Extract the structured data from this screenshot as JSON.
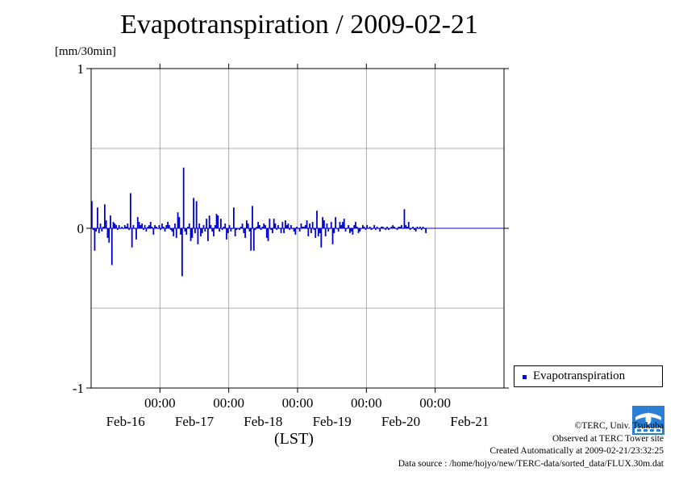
{
  "title": "Evapotranspiration / 2009-02-21",
  "unit_label": "[mm/30min]",
  "legend": {
    "label": "Evapotranspiration"
  },
  "colors": {
    "series": "#0000cc",
    "grid": "#999999",
    "axis": "#000000"
  },
  "credits": {
    "line1": "©TERC, Univ. Tsukuba",
    "line2": "Observed at TERC Tower site",
    "line3": "Created Automatically at 2009-02-21/23:32:25",
    "line4": "Data source : /home/hojyo/new/TERC-data/sorted_data/FLUX.30m.dat"
  },
  "logo_icon": "terc-logo-icon",
  "chart_data": {
    "type": "bar",
    "title": "Evapotranspiration / 2009-02-21",
    "ylabel": "[mm/30min]",
    "xlabel": "(LST)",
    "ylim": [
      -1,
      1
    ],
    "yticks": [
      "1",
      "0",
      "-1"
    ],
    "ytick_values": [
      1,
      0,
      -1
    ],
    "xlim": [
      -1.0,
      5.0
    ],
    "xticks": [
      {
        "pos": 0,
        "time": "00:00",
        "date": "Feb-17"
      },
      {
        "pos": 1,
        "time": "00:00",
        "date": "Feb-18"
      },
      {
        "pos": 2,
        "time": "00:00",
        "date": "Feb-19"
      },
      {
        "pos": 3,
        "time": "00:00",
        "date": "Feb-20"
      },
      {
        "pos": 4,
        "time": "00:00",
        "date": "Feb-21"
      }
    ],
    "date_labels": [
      {
        "pos": -0.5,
        "date": "Feb-16"
      },
      {
        "pos": 0.5,
        "date": "Feb-17"
      },
      {
        "pos": 1.5,
        "date": "Feb-18"
      },
      {
        "pos": 2.5,
        "date": "Feb-19"
      },
      {
        "pos": 3.5,
        "date": "Feb-20"
      },
      {
        "pos": 4.5,
        "date": "Feb-21"
      }
    ],
    "grid": true,
    "legend_position": "right",
    "series": [
      {
        "name": "Evapotranspiration",
        "x_start": -1.0,
        "x_step": 0.0208333,
        "values": [
          0.17,
          -0.01,
          -0.14,
          -0.02,
          0.13,
          -0.03,
          0.03,
          -0.02,
          0.01,
          0.15,
          0.05,
          -0.06,
          -0.09,
          0.08,
          -0.23,
          0.04,
          0.03,
          0.02,
          -0.01,
          0.02,
          0.0,
          0.01,
          0.0,
          0.02,
          0.01,
          0.03,
          -0.01,
          0.22,
          -0.12,
          0.02,
          0.0,
          -0.07,
          0.07,
          0.04,
          0.02,
          0.03,
          -0.01,
          0.02,
          -0.02,
          0.01,
          0.02,
          0.04,
          0.01,
          -0.04,
          0.02,
          0.01,
          0.0,
          0.02,
          -0.01,
          0.03,
          0.01,
          -0.02,
          0.02,
          0.04,
          0.02,
          -0.01,
          -0.02,
          -0.05,
          0.03,
          -0.06,
          0.1,
          0.07,
          -0.04,
          -0.3,
          0.38,
          -0.02,
          -0.04,
          0.01,
          0.03,
          -0.08,
          -0.06,
          0.19,
          -0.03,
          0.17,
          -0.1,
          0.03,
          -0.05,
          -0.03,
          0.02,
          -0.02,
          0.06,
          -0.08,
          0.08,
          0.02,
          -0.02,
          -0.05,
          0.02,
          0.09,
          0.08,
          -0.02,
          0.06,
          -0.01,
          0.01,
          0.03,
          -0.07,
          -0.03,
          0.02,
          -0.02,
          0.0,
          0.13,
          -0.05,
          -0.01,
          0.0,
          -0.01,
          0.01,
          0.03,
          -0.03,
          -0.06,
          0.05,
          0.03,
          -0.02,
          -0.14,
          0.14,
          -0.14,
          -0.01,
          0.01,
          0.04,
          0.02,
          -0.01,
          0.01,
          0.03,
          0.02,
          -0.06,
          -0.08,
          0.06,
          -0.01,
          -0.03,
          0.06,
          0.03,
          -0.01,
          0.02,
          0.0,
          -0.03,
          0.04,
          -0.03,
          0.05,
          0.02,
          0.03,
          -0.01,
          0.02,
          0.0,
          -0.02,
          -0.04,
          0.01,
          0.0,
          -0.02,
          0.03,
          0.01,
          0.01,
          0.02,
          0.05,
          -0.05,
          0.03,
          -0.03,
          0.04,
          -0.01,
          -0.06,
          0.11,
          -0.05,
          -0.03,
          -0.12,
          0.07,
          0.05,
          -0.05,
          0.03,
          -0.02,
          0.0,
          0.04,
          -0.1,
          -0.03,
          0.07,
          0.0,
          -0.02,
          0.04,
          0.02,
          0.04,
          0.06,
          -0.02,
          0.0,
          0.02,
          -0.03,
          -0.02,
          -0.04,
          0.02,
          0.04,
          0.01,
          -0.03,
          -0.02,
          0.0,
          0.02,
          0.01,
          -0.01,
          0.02,
          0.0,
          0.01,
          -0.01,
          0.0,
          0.02,
          -0.01,
          0.01,
          0.0,
          -0.02,
          0.01,
          0.01,
          0.0,
          -0.01,
          0.01,
          -0.01,
          0.0,
          0.01,
          0.02,
          0.01,
          0.0,
          -0.01,
          0.01,
          0.01,
          0.02,
          0.0,
          0.12,
          0.02,
          0.01,
          0.04,
          -0.01,
          0.0,
          0.01,
          -0.01,
          -0.02,
          0.01,
          0.0,
          0.01,
          -0.01,
          0.01,
          0.0,
          -0.03
        ]
      }
    ]
  }
}
